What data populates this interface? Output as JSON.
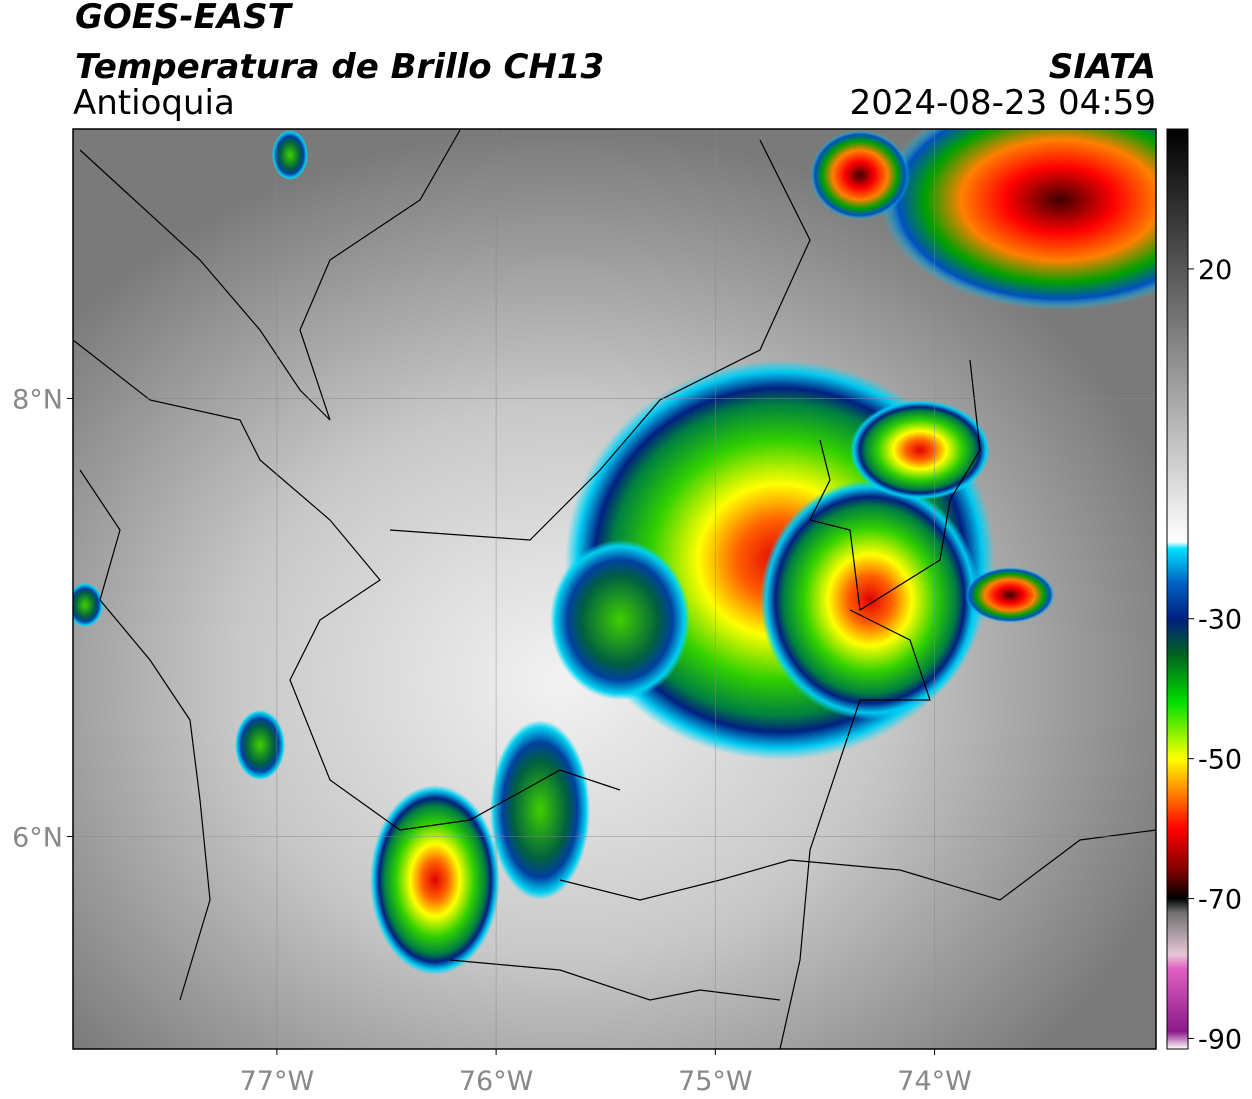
{
  "header": {
    "title": "GOES-EAST",
    "subtitle": "Temperatura de Brillo CH13",
    "region": "Antioquia",
    "source": "SIATA",
    "datetime": "2024-08-23 04:59"
  },
  "map": {
    "xlim": [
      -77.93,
      -72.99
    ],
    "ylim": [
      5.03,
      9.23
    ],
    "lon_ticks": [
      {
        "value": -77,
        "label": "77°W"
      },
      {
        "value": -76,
        "label": "76°W"
      },
      {
        "value": -75,
        "label": "75°W"
      },
      {
        "value": -74,
        "label": "74°W"
      }
    ],
    "lat_ticks": [
      {
        "value": 8,
        "label": "8°N"
      },
      {
        "value": 6,
        "label": "6°N"
      }
    ]
  },
  "colorbar": {
    "clim": [
      -91.5,
      40
    ],
    "ticks": [
      20,
      -30,
      -50,
      -70,
      -90
    ],
    "colormap": [
      {
        "value": -91.5,
        "color": "#ffffff"
      },
      {
        "value": -89,
        "color": "#8b1a8b"
      },
      {
        "value": -80,
        "color": "#e060c0"
      },
      {
        "value": -78,
        "color": "#e8c8d8"
      },
      {
        "value": -72,
        "color": "#707070"
      },
      {
        "value": -70,
        "color": "#000000"
      },
      {
        "value": -66,
        "color": "#800000"
      },
      {
        "value": -60,
        "color": "#ff0000"
      },
      {
        "value": -55,
        "color": "#ff8000"
      },
      {
        "value": -50,
        "color": "#ffff00"
      },
      {
        "value": -42,
        "color": "#00e000"
      },
      {
        "value": -35,
        "color": "#006020"
      },
      {
        "value": -30,
        "color": "#002080"
      },
      {
        "value": -25,
        "color": "#0060c0"
      },
      {
        "value": -20,
        "color": "#00e0ff"
      },
      {
        "value": -19,
        "color": "#ffffff"
      },
      {
        "value": 40,
        "color": "#000000"
      }
    ]
  }
}
